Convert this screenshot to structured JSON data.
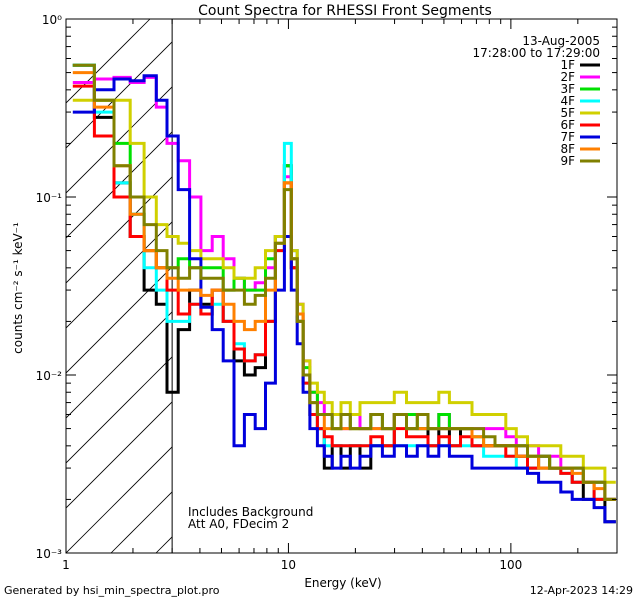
{
  "chart_data": {
    "type": "line",
    "title": "Count Spectra for RHESSI Front Segments",
    "xlabel": "Energy (keV)",
    "ylabel": "counts cm⁻² s⁻¹ keV⁻¹",
    "xscale": "log",
    "yscale": "log",
    "xlim": [
      1,
      300
    ],
    "ylim": [
      0.001,
      1.0
    ],
    "xtick_labels": [
      {
        "value": 1,
        "label": "1"
      },
      {
        "value": 10,
        "label": "10"
      },
      {
        "value": 100,
        "label": "100"
      }
    ],
    "ytick_labels": [
      {
        "value": 0.001,
        "label": "10⁻³"
      },
      {
        "value": 0.01,
        "label": "10⁻²"
      },
      {
        "value": 0.1,
        "label": "10⁻¹"
      },
      {
        "value": 1.0,
        "label": "10⁰"
      }
    ],
    "date": "13-Aug-2005",
    "time_range": "17:28:00 to 17:29:00",
    "hatched_region_xmax": 3,
    "annotations": [
      "Includes Background",
      "Att A0, FDecim 2"
    ],
    "energy_bins": [
      1.2,
      1.5,
      1.8,
      2.1,
      2.4,
      2.7,
      3.0,
      3.4,
      3.8,
      4.3,
      4.8,
      5.4,
      6.0,
      6.7,
      7.5,
      8.3,
      9.2,
      10.0,
      10.6,
      11.3,
      12.0,
      13,
      14,
      15,
      16.5,
      18,
      20,
      22,
      25,
      28,
      32,
      36,
      40,
      45,
      50,
      56,
      63,
      71,
      80,
      90,
      100,
      112,
      126,
      141,
      158,
      178,
      200,
      224,
      250,
      280
    ],
    "series": [
      {
        "name": "1F",
        "color": "#000000",
        "values": [
          0.55,
          0.28,
          0.12,
          0.06,
          0.03,
          0.025,
          0.008,
          0.018,
          0.03,
          0.025,
          0.03,
          0.02,
          0.012,
          0.01,
          0.011,
          0.02,
          0.06,
          0.15,
          0.04,
          0.02,
          0.01,
          0.006,
          0.005,
          0.003,
          0.004,
          0.003,
          0.004,
          0.003,
          0.004,
          0.004,
          0.006,
          0.005,
          0.005,
          0.004,
          0.005,
          0.004,
          0.005,
          0.004,
          0.004,
          0.004,
          0.004,
          0.0035,
          0.003,
          0.0035,
          0.003,
          0.003,
          0.0025,
          0.002,
          0.002,
          0.0015
        ]
      },
      {
        "name": "2F",
        "color": "#ff00ff",
        "values": [
          0.44,
          0.46,
          0.47,
          0.44,
          0.47,
          0.32,
          0.2,
          0.16,
          0.1,
          0.05,
          0.06,
          0.045,
          0.035,
          0.03,
          0.033,
          0.04,
          0.06,
          0.13,
          0.05,
          0.025,
          0.012,
          0.008,
          0.007,
          0.006,
          0.006,
          0.005,
          0.006,
          0.005,
          0.005,
          0.005,
          0.006,
          0.006,
          0.006,
          0.005,
          0.006,
          0.005,
          0.005,
          0.005,
          0.005,
          0.005,
          0.0045,
          0.004,
          0.004,
          0.0035,
          0.0035,
          0.003,
          0.003,
          0.0025,
          0.0025,
          0.002
        ]
      },
      {
        "name": "3F",
        "color": "#00e000",
        "values": [
          0.55,
          0.35,
          0.2,
          0.08,
          0.05,
          0.04,
          0.04,
          0.045,
          0.04,
          0.04,
          0.04,
          0.03,
          0.035,
          0.03,
          0.03,
          0.045,
          0.06,
          0.15,
          0.045,
          0.022,
          0.011,
          0.008,
          0.006,
          0.006,
          0.005,
          0.006,
          0.005,
          0.005,
          0.006,
          0.005,
          0.006,
          0.006,
          0.005,
          0.005,
          0.006,
          0.005,
          0.005,
          0.0045,
          0.004,
          0.004,
          0.004,
          0.004,
          0.0035,
          0.0035,
          0.003,
          0.003,
          0.003,
          0.0025,
          0.0025,
          0.002
        ]
      },
      {
        "name": "4F",
        "color": "#00ffff",
        "values": [
          0.55,
          0.3,
          0.12,
          0.08,
          0.04,
          0.03,
          0.02,
          0.02,
          0.025,
          0.022,
          0.025,
          0.02,
          0.015,
          0.012,
          0.013,
          0.02,
          0.05,
          0.2,
          0.05,
          0.02,
          0.009,
          0.006,
          0.005,
          0.004,
          0.004,
          0.004,
          0.004,
          0.004,
          0.004,
          0.004,
          0.004,
          0.004,
          0.004,
          0.004,
          0.004,
          0.004,
          0.004,
          0.004,
          0.0035,
          0.0035,
          0.0035,
          0.003,
          0.003,
          0.003,
          0.003,
          0.0028,
          0.0025,
          0.0025,
          0.002,
          0.002
        ]
      },
      {
        "name": "5F",
        "color": "#d0d000",
        "values": [
          0.35,
          0.35,
          0.35,
          0.2,
          0.1,
          0.07,
          0.06,
          0.055,
          0.05,
          0.045,
          0.045,
          0.04,
          0.035,
          0.035,
          0.04,
          0.05,
          0.06,
          0.12,
          0.05,
          0.025,
          0.012,
          0.009,
          0.008,
          0.007,
          0.006,
          0.007,
          0.006,
          0.007,
          0.007,
          0.007,
          0.008,
          0.007,
          0.007,
          0.007,
          0.008,
          0.007,
          0.007,
          0.006,
          0.006,
          0.006,
          0.005,
          0.0045,
          0.004,
          0.004,
          0.004,
          0.0035,
          0.0035,
          0.003,
          0.003,
          0.0025
        ]
      },
      {
        "name": "6F",
        "color": "#ff0000",
        "values": [
          0.42,
          0.22,
          0.1,
          0.06,
          0.05,
          0.04,
          0.03,
          0.022,
          0.025,
          0.022,
          0.03,
          0.02,
          0.014,
          0.012,
          0.013,
          0.02,
          0.05,
          0.12,
          0.04,
          0.02,
          0.009,
          0.006,
          0.005,
          0.0045,
          0.004,
          0.004,
          0.004,
          0.004,
          0.0045,
          0.004,
          0.005,
          0.0045,
          0.0045,
          0.004,
          0.0045,
          0.004,
          0.0045,
          0.004,
          0.004,
          0.004,
          0.0035,
          0.0035,
          0.003,
          0.003,
          0.003,
          0.0028,
          0.0025,
          0.0025,
          0.002,
          0.002
        ]
      },
      {
        "name": "7F",
        "color": "#0000dd",
        "values": [
          0.3,
          0.4,
          0.46,
          0.45,
          0.48,
          0.35,
          0.22,
          0.11,
          0.045,
          0.024,
          0.018,
          0.012,
          0.004,
          0.006,
          0.005,
          0.009,
          0.03,
          0.06,
          0.03,
          0.015,
          0.008,
          0.005,
          0.004,
          0.0035,
          0.003,
          0.0035,
          0.003,
          0.0035,
          0.004,
          0.0035,
          0.004,
          0.0035,
          0.004,
          0.0035,
          0.004,
          0.0035,
          0.0035,
          0.003,
          0.003,
          0.003,
          0.003,
          0.003,
          0.0028,
          0.0025,
          0.0025,
          0.0022,
          0.002,
          0.002,
          0.0018,
          0.0015
        ]
      },
      {
        "name": "8F",
        "color": "#ff8000",
        "values": [
          0.5,
          0.32,
          0.15,
          0.08,
          0.05,
          0.04,
          0.035,
          0.03,
          0.03,
          0.028,
          0.03,
          0.025,
          0.02,
          0.018,
          0.02,
          0.03,
          0.055,
          0.12,
          0.045,
          0.022,
          0.01,
          0.007,
          0.006,
          0.005,
          0.005,
          0.005,
          0.005,
          0.005,
          0.005,
          0.005,
          0.006,
          0.005,
          0.005,
          0.005,
          0.005,
          0.005,
          0.005,
          0.0045,
          0.004,
          0.004,
          0.004,
          0.0035,
          0.0035,
          0.003,
          0.003,
          0.003,
          0.0028,
          0.0025,
          0.0023,
          0.002
        ]
      },
      {
        "name": "9F",
        "color": "#808000",
        "values": [
          0.55,
          0.35,
          0.15,
          0.1,
          0.07,
          0.05,
          0.04,
          0.035,
          0.04,
          0.035,
          0.035,
          0.03,
          0.03,
          0.025,
          0.028,
          0.035,
          0.055,
          0.11,
          0.045,
          0.02,
          0.01,
          0.007,
          0.006,
          0.006,
          0.005,
          0.006,
          0.005,
          0.005,
          0.006,
          0.005,
          0.006,
          0.005,
          0.006,
          0.005,
          0.005,
          0.005,
          0.005,
          0.005,
          0.0045,
          0.004,
          0.004,
          0.004,
          0.0035,
          0.0035,
          0.003,
          0.003,
          0.003,
          0.0025,
          0.0025,
          0.002
        ]
      }
    ]
  },
  "footer": {
    "generated_by": "Generated by hsi_min_spectra_plot.pro",
    "timestamp": "12-Apr-2023 14:29"
  }
}
